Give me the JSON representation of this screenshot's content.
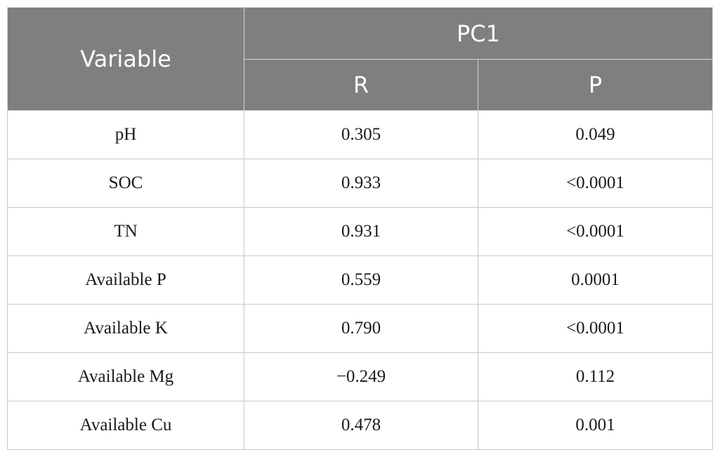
{
  "table": {
    "header": {
      "variable": "Variable",
      "group": "PC1",
      "sub": [
        "R",
        "P"
      ]
    },
    "rows": [
      {
        "variable": "pH",
        "r": "0.305",
        "p": "0.049"
      },
      {
        "variable": "SOC",
        "r": "0.933",
        "p": "<0.0001"
      },
      {
        "variable": "TN",
        "r": "0.931",
        "p": "<0.0001"
      },
      {
        "variable": "Available P",
        "r": "0.559",
        "p": "0.0001"
      },
      {
        "variable": "Available K",
        "r": "0.790",
        "p": "<0.0001"
      },
      {
        "variable": "Available Mg",
        "r": "−0.249",
        "p": "0.112"
      },
      {
        "variable": "Available Cu",
        "r": "0.478",
        "p": "0.001"
      }
    ]
  },
  "colors": {
    "header_bg": "#7f7f7f",
    "header_text": "#ffffff",
    "grid": "#c8c8c8"
  }
}
